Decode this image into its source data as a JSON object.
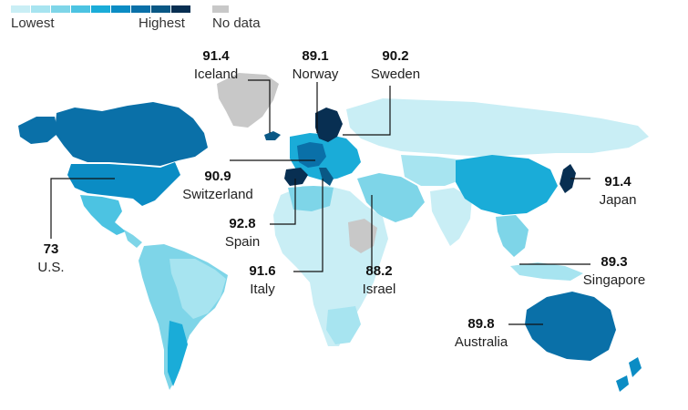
{
  "legend": {
    "lowest_label": "Lowest",
    "highest_label": "Highest",
    "no_data_label": "No data",
    "scale_colors": [
      "#c9eef5",
      "#a7e4f0",
      "#7ed5e8",
      "#4cc3e2",
      "#1aacd8",
      "#0b8cc4",
      "#0a70a8",
      "#0a5885",
      "#082f52"
    ],
    "no_data_color": "#c8c8c8"
  },
  "callouts": [
    {
      "value": "91.4",
      "name": "Iceland"
    },
    {
      "value": "89.1",
      "name": "Norway"
    },
    {
      "value": "90.2",
      "name": "Sweden"
    },
    {
      "value": "90.9",
      "name": "Switzerland"
    },
    {
      "value": "92.8",
      "name": "Spain"
    },
    {
      "value": "91.6",
      "name": "Italy"
    },
    {
      "value": "88.2",
      "name": "Israel"
    },
    {
      "value": "73",
      "name": "U.S."
    },
    {
      "value": "91.4",
      "name": "Japan"
    },
    {
      "value": "89.3",
      "name": "Singapore"
    },
    {
      "value": "89.8",
      "name": "Australia"
    }
  ]
}
